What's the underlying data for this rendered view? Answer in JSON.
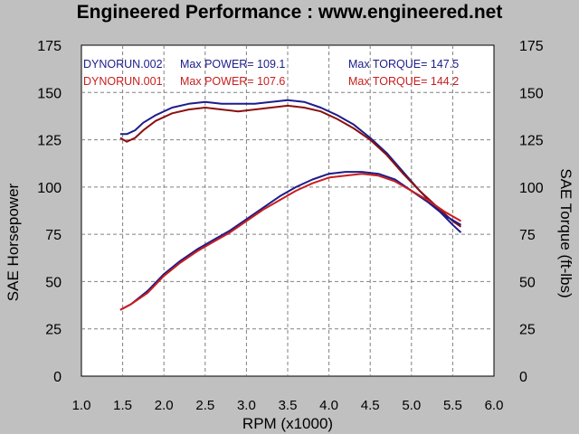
{
  "title": "Engineered Performance :  www.engineered.net",
  "colors": {
    "background": "#c0c0c0",
    "plot_bg": "#ffffff",
    "grid": "#808080",
    "run2": "#1c1c8c",
    "run1": "#c81e1e",
    "run1_torque": "#8a1010"
  },
  "chart_data": {
    "type": "line",
    "title": "Engineered Performance :  www.engineered.net",
    "xlabel": "RPM (x1000)",
    "ylabel": "SAE Horsepower",
    "y2label": "SAE Torque (ft-lbs)",
    "xlim": [
      1.0,
      6.0
    ],
    "ylim": [
      0,
      175
    ],
    "y2lim": [
      0,
      175
    ],
    "grid": true,
    "legend_position": "top",
    "x_ticks": [
      "1.0",
      "1.5",
      "2.0",
      "2.5",
      "3.0",
      "3.5",
      "4.0",
      "4.5",
      "5.0",
      "5.5",
      "6.0"
    ],
    "y_ticks": [
      "0",
      "25",
      "50",
      "75",
      "100",
      "125",
      "150",
      "175"
    ],
    "legend": [
      {
        "run": "DYNORUN.002",
        "power_label": "Max POWER= 109.1",
        "torque_label": "Max TORQUE= 147.5",
        "color": "#1c1c8c"
      },
      {
        "run": "DYNORUN.001",
        "power_label": "Max POWER= 107.6",
        "torque_label": "Max TORQUE= 144.2",
        "color": "#c81e1e"
      }
    ],
    "series": [
      {
        "run": "DYNORUN.002",
        "kind": "torque",
        "color": "#1c1c8c",
        "points": [
          [
            1.47,
            128
          ],
          [
            1.55,
            128
          ],
          [
            1.65,
            130
          ],
          [
            1.75,
            134
          ],
          [
            1.9,
            138
          ],
          [
            2.1,
            142
          ],
          [
            2.3,
            144
          ],
          [
            2.5,
            145
          ],
          [
            2.7,
            144
          ],
          [
            2.9,
            144
          ],
          [
            3.1,
            144
          ],
          [
            3.3,
            145
          ],
          [
            3.5,
            146
          ],
          [
            3.7,
            145
          ],
          [
            3.9,
            142
          ],
          [
            4.1,
            138
          ],
          [
            4.3,
            133
          ],
          [
            4.5,
            126
          ],
          [
            4.7,
            118
          ],
          [
            4.9,
            108
          ],
          [
            5.1,
            98
          ],
          [
            5.3,
            89
          ],
          [
            5.5,
            80
          ],
          [
            5.6,
            76
          ]
        ]
      },
      {
        "run": "DYNORUN.001",
        "kind": "torque",
        "color": "#8a1010",
        "points": [
          [
            1.47,
            126
          ],
          [
            1.55,
            124
          ],
          [
            1.65,
            126
          ],
          [
            1.75,
            130
          ],
          [
            1.9,
            135
          ],
          [
            2.1,
            139
          ],
          [
            2.3,
            141
          ],
          [
            2.5,
            142
          ],
          [
            2.7,
            141
          ],
          [
            2.9,
            140
          ],
          [
            3.1,
            141
          ],
          [
            3.3,
            142
          ],
          [
            3.5,
            143
          ],
          [
            3.7,
            142
          ],
          [
            3.9,
            140
          ],
          [
            4.1,
            136
          ],
          [
            4.3,
            131
          ],
          [
            4.5,
            125
          ],
          [
            4.7,
            117
          ],
          [
            4.9,
            107
          ],
          [
            5.1,
            98
          ],
          [
            5.3,
            90
          ],
          [
            5.5,
            82
          ],
          [
            5.6,
            79
          ]
        ]
      },
      {
        "run": "DYNORUN.002",
        "kind": "power",
        "color": "#1c1c8c",
        "points": [
          [
            1.47,
            35
          ],
          [
            1.6,
            38
          ],
          [
            1.8,
            45
          ],
          [
            2.0,
            54
          ],
          [
            2.2,
            61
          ],
          [
            2.4,
            67
          ],
          [
            2.6,
            72
          ],
          [
            2.8,
            77
          ],
          [
            3.0,
            83
          ],
          [
            3.2,
            89
          ],
          [
            3.4,
            95
          ],
          [
            3.6,
            100
          ],
          [
            3.8,
            104
          ],
          [
            4.0,
            107
          ],
          [
            4.2,
            108
          ],
          [
            4.4,
            108
          ],
          [
            4.6,
            107
          ],
          [
            4.8,
            104
          ],
          [
            5.0,
            98
          ],
          [
            5.2,
            92
          ],
          [
            5.4,
            85
          ],
          [
            5.6,
            80
          ]
        ]
      },
      {
        "run": "DYNORUN.001",
        "kind": "power",
        "color": "#c81e1e",
        "points": [
          [
            1.47,
            35
          ],
          [
            1.6,
            38
          ],
          [
            1.8,
            44
          ],
          [
            2.0,
            53
          ],
          [
            2.2,
            60
          ],
          [
            2.4,
            66
          ],
          [
            2.6,
            71
          ],
          [
            2.8,
            76
          ],
          [
            3.0,
            82
          ],
          [
            3.2,
            88
          ],
          [
            3.4,
            93
          ],
          [
            3.6,
            98
          ],
          [
            3.8,
            102
          ],
          [
            4.0,
            105
          ],
          [
            4.2,
            106
          ],
          [
            4.4,
            107
          ],
          [
            4.6,
            106
          ],
          [
            4.8,
            103
          ],
          [
            5.0,
            98
          ],
          [
            5.2,
            93
          ],
          [
            5.4,
            87
          ],
          [
            5.6,
            82
          ]
        ]
      }
    ]
  }
}
